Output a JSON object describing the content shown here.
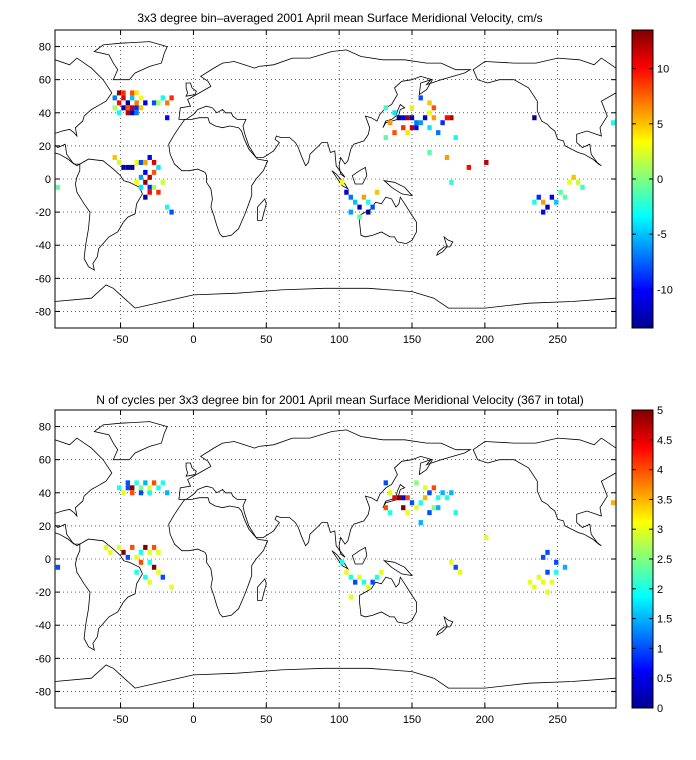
{
  "chart_data": [
    {
      "type": "heatmap",
      "title": "3x3 degree bin–averaged 2001 April mean Surface Meridional Velocity, cm/s",
      "xlim": [
        -95,
        290
      ],
      "ylim": [
        -90,
        90
      ],
      "xticks": [
        -50,
        0,
        50,
        100,
        150,
        200,
        250
      ],
      "yticks": [
        -80,
        -60,
        -40,
        -20,
        0,
        20,
        40,
        60,
        80
      ],
      "xtick_labels": [
        "-50",
        "0",
        "50",
        "100",
        "150",
        "200",
        "250"
      ],
      "ytick_labels": [
        "-80",
        "-60",
        "-40",
        "-20",
        "0",
        "20",
        "40",
        "60",
        "80"
      ],
      "grid": true,
      "colormap": "jet",
      "colorbar": {
        "min": -13.5,
        "max": 13.5,
        "ticks": [
          -10,
          -5,
          0,
          5,
          10
        ],
        "tick_labels": [
          "-10",
          "-5",
          "0",
          "5",
          "10"
        ]
      },
      "bin_size_deg": 3,
      "cells": [
        [
          -51,
          52,
          13
        ],
        [
          -48,
          52,
          9
        ],
        [
          -42,
          52,
          8
        ],
        [
          -39,
          52,
          4
        ],
        [
          -54,
          49,
          -7
        ],
        [
          -48,
          49,
          11
        ],
        [
          -42,
          49,
          -5
        ],
        [
          -36,
          49,
          3
        ],
        [
          -51,
          46,
          10
        ],
        [
          -45,
          46,
          -13
        ],
        [
          -39,
          46,
          7
        ],
        [
          -33,
          46,
          -11
        ],
        [
          -54,
          43,
          1
        ],
        [
          -48,
          43,
          -12
        ],
        [
          -45,
          43,
          8
        ],
        [
          -42,
          43,
          12
        ],
        [
          -39,
          43,
          -9
        ],
        [
          -36,
          43,
          5
        ],
        [
          -51,
          40,
          -3
        ],
        [
          -45,
          40,
          12
        ],
        [
          -42,
          40,
          -12
        ],
        [
          -39,
          40,
          -7
        ],
        [
          -27,
          46,
          -8
        ],
        [
          -24,
          46,
          1
        ],
        [
          -18,
          46,
          7
        ],
        [
          -21,
          49,
          -3
        ],
        [
          -15,
          49,
          9
        ],
        [
          -18,
          37,
          -10
        ],
        [
          -54,
          13,
          5
        ],
        [
          -51,
          10,
          2
        ],
        [
          -48,
          7,
          -12
        ],
        [
          -45,
          7,
          -12
        ],
        [
          -42,
          7,
          -13
        ],
        [
          -39,
          10,
          3
        ],
        [
          -36,
          10,
          -8
        ],
        [
          -33,
          10,
          6
        ],
        [
          -30,
          13,
          -10
        ],
        [
          -27,
          10,
          11
        ],
        [
          -24,
          7,
          -4
        ],
        [
          -27,
          4,
          8
        ],
        [
          -33,
          4,
          -11
        ],
        [
          -30,
          1,
          12
        ],
        [
          -36,
          1,
          -6
        ],
        [
          -39,
          -2,
          3
        ],
        [
          -33,
          -2,
          13
        ],
        [
          -30,
          -5,
          -9
        ],
        [
          -27,
          -5,
          1
        ],
        [
          -30,
          -8,
          10
        ],
        [
          -36,
          -5,
          -4
        ],
        [
          -24,
          -8,
          9
        ],
        [
          -33,
          -11,
          -12
        ],
        [
          -21,
          -2,
          2
        ],
        [
          -18,
          -17,
          -3
        ],
        [
          -15,
          -20,
          -8
        ],
        [
          -93,
          -5,
          -1
        ],
        [
          132,
          43,
          -2
        ],
        [
          138,
          40,
          -4
        ],
        [
          141,
          37,
          -13
        ],
        [
          144,
          37,
          -11
        ],
        [
          147,
          37,
          13
        ],
        [
          150,
          37,
          -12
        ],
        [
          153,
          34,
          -7
        ],
        [
          144,
          31,
          9
        ],
        [
          150,
          31,
          12
        ],
        [
          153,
          31,
          -10
        ],
        [
          156,
          34,
          -6
        ],
        [
          147,
          28,
          4
        ],
        [
          138,
          28,
          8
        ],
        [
          135,
          34,
          6
        ],
        [
          162,
          40,
          3
        ],
        [
          165,
          37,
          6
        ],
        [
          159,
          37,
          -11
        ],
        [
          162,
          31,
          -4
        ],
        [
          171,
          34,
          -9
        ],
        [
          174,
          37,
          10
        ],
        [
          177,
          37,
          12
        ],
        [
          168,
          28,
          -7
        ],
        [
          162,
          46,
          5
        ],
        [
          165,
          43,
          8
        ],
        [
          162,
          16,
          -1
        ],
        [
          177,
          -2,
          -2
        ],
        [
          180,
          25,
          -3
        ],
        [
          189,
          7,
          10
        ],
        [
          201,
          10,
          12
        ],
        [
          234,
          37,
          -13
        ],
        [
          174,
          13,
          6
        ],
        [
          156,
          49,
          -8
        ],
        [
          150,
          43,
          4
        ],
        [
          132,
          25,
          -1
        ],
        [
          105,
          -8,
          -11
        ],
        [
          108,
          -11,
          -7
        ],
        [
          111,
          -14,
          -5
        ],
        [
          114,
          -17,
          -12
        ],
        [
          117,
          -11,
          6
        ],
        [
          120,
          -14,
          -3
        ],
        [
          123,
          -17,
          -8
        ],
        [
          108,
          -20,
          -6
        ],
        [
          120,
          -20,
          -13
        ],
        [
          102,
          -2,
          3
        ],
        [
          126,
          -8,
          5
        ],
        [
          114,
          -23,
          -1
        ],
        [
          234,
          -14,
          -3
        ],
        [
          237,
          -11,
          -9
        ],
        [
          240,
          -14,
          6
        ],
        [
          243,
          -17,
          -12
        ],
        [
          246,
          -11,
          -11
        ],
        [
          249,
          -14,
          -5
        ],
        [
          252,
          -8,
          -1
        ],
        [
          255,
          -11,
          -1
        ],
        [
          240,
          -20,
          -10
        ],
        [
          264,
          -2,
          2
        ],
        [
          261,
          1,
          5
        ],
        [
          267,
          -5,
          -2
        ],
        [
          258,
          -2,
          3
        ],
        [
          288,
          34,
          -3
        ]
      ]
    },
    {
      "type": "heatmap",
      "title": "N of cycles per 3x3 degree bin for 2001 April mean Surface Meridional Velocity (367 in total)",
      "xlim": [
        -95,
        290
      ],
      "ylim": [
        -90,
        90
      ],
      "xticks": [
        -50,
        0,
        50,
        100,
        150,
        200,
        250
      ],
      "yticks": [
        -80,
        -60,
        -40,
        -20,
        0,
        20,
        40,
        60,
        80
      ],
      "xtick_labels": [
        "-50",
        "0",
        "50",
        "100",
        "150",
        "200",
        "250"
      ],
      "ytick_labels": [
        "-80",
        "-60",
        "-40",
        "-20",
        "0",
        "20",
        "40",
        "60",
        "80"
      ],
      "grid": true,
      "colormap": "jet",
      "colorbar": {
        "min": 0,
        "max": 5,
        "ticks": [
          0,
          0.5,
          1,
          1.5,
          2,
          2.5,
          3,
          3.5,
          4,
          4.5,
          5
        ],
        "tick_labels": [
          "0",
          "0.5",
          "1",
          "1.5",
          "2",
          "2.5",
          "3",
          "3.5",
          "4",
          "4.5",
          "5"
        ]
      },
      "bin_size_deg": 3,
      "cells": [
        [
          -45,
          46,
          1
        ],
        [
          -39,
          46,
          2
        ],
        [
          -33,
          46,
          1.5
        ],
        [
          -27,
          46,
          4
        ],
        [
          -51,
          43,
          2
        ],
        [
          -45,
          43,
          1
        ],
        [
          -42,
          43,
          5
        ],
        [
          -36,
          43,
          2.5
        ],
        [
          -30,
          43,
          3
        ],
        [
          -24,
          43,
          2
        ],
        [
          -48,
          40,
          3
        ],
        [
          -42,
          40,
          4
        ],
        [
          -36,
          40,
          1
        ],
        [
          -30,
          40,
          2
        ],
        [
          -18,
          40,
          1.5
        ],
        [
          -21,
          46,
          2
        ],
        [
          -60,
          7,
          3
        ],
        [
          -57,
          4,
          3
        ],
        [
          -51,
          7,
          3
        ],
        [
          -48,
          4,
          5
        ],
        [
          -45,
          1,
          1
        ],
        [
          -42,
          7,
          4
        ],
        [
          -39,
          1,
          3
        ],
        [
          -36,
          4,
          2
        ],
        [
          -33,
          7,
          5
        ],
        [
          -30,
          4,
          3
        ],
        [
          -27,
          7,
          4
        ],
        [
          -24,
          4,
          3
        ],
        [
          -36,
          -2,
          4
        ],
        [
          -30,
          -2,
          2
        ],
        [
          -27,
          -5,
          5
        ],
        [
          -24,
          -8,
          3
        ],
        [
          -33,
          -11,
          2
        ],
        [
          -30,
          -14,
          3
        ],
        [
          -21,
          -11,
          1
        ],
        [
          -15,
          -17,
          3
        ],
        [
          -39,
          -8,
          2
        ],
        [
          -93,
          -5,
          1
        ],
        [
          132,
          46,
          1
        ],
        [
          135,
          40,
          3
        ],
        [
          138,
          37,
          4.5
        ],
        [
          141,
          37,
          5
        ],
        [
          144,
          37,
          0.5
        ],
        [
          147,
          37,
          4
        ],
        [
          150,
          34,
          1
        ],
        [
          144,
          31,
          5
        ],
        [
          147,
          28,
          3
        ],
        [
          135,
          28,
          2
        ],
        [
          132,
          31,
          4
        ],
        [
          153,
          31,
          3
        ],
        [
          159,
          43,
          3
        ],
        [
          162,
          40,
          1
        ],
        [
          165,
          43,
          4
        ],
        [
          168,
          37,
          2
        ],
        [
          171,
          40,
          1.5
        ],
        [
          156,
          34,
          2
        ],
        [
          162,
          28,
          1
        ],
        [
          165,
          31,
          2.5
        ],
        [
          174,
          37,
          2
        ],
        [
          177,
          40,
          1.5
        ],
        [
          153,
          46,
          2.5
        ],
        [
          159,
          37,
          3.5
        ],
        [
          168,
          31,
          1.5
        ],
        [
          156,
          22,
          1.5
        ],
        [
          180,
          28,
          2
        ],
        [
          201,
          13,
          3
        ],
        [
          177,
          -2,
          3
        ],
        [
          180,
          -5,
          1
        ],
        [
          183,
          -8,
          3
        ],
        [
          105,
          -8,
          3
        ],
        [
          108,
          -11,
          2
        ],
        [
          111,
          -14,
          1
        ],
        [
          114,
          -11,
          3
        ],
        [
          117,
          -14,
          2
        ],
        [
          120,
          -17,
          3
        ],
        [
          123,
          -14,
          1
        ],
        [
          126,
          -11,
          2
        ],
        [
          108,
          -23,
          3
        ],
        [
          102,
          -2,
          2
        ],
        [
          129,
          -8,
          3
        ],
        [
          231,
          -14,
          3
        ],
        [
          234,
          -17,
          3
        ],
        [
          237,
          -11,
          3
        ],
        [
          240,
          -14,
          3
        ],
        [
          243,
          -20,
          3
        ],
        [
          246,
          -14,
          3
        ],
        [
          243,
          -8,
          1
        ],
        [
          249,
          -8,
          2
        ],
        [
          240,
          1,
          1
        ],
        [
          243,
          4,
          1
        ],
        [
          249,
          -2,
          1
        ],
        [
          255,
          -5,
          1.5
        ],
        [
          288,
          34,
          3.5
        ]
      ]
    }
  ]
}
